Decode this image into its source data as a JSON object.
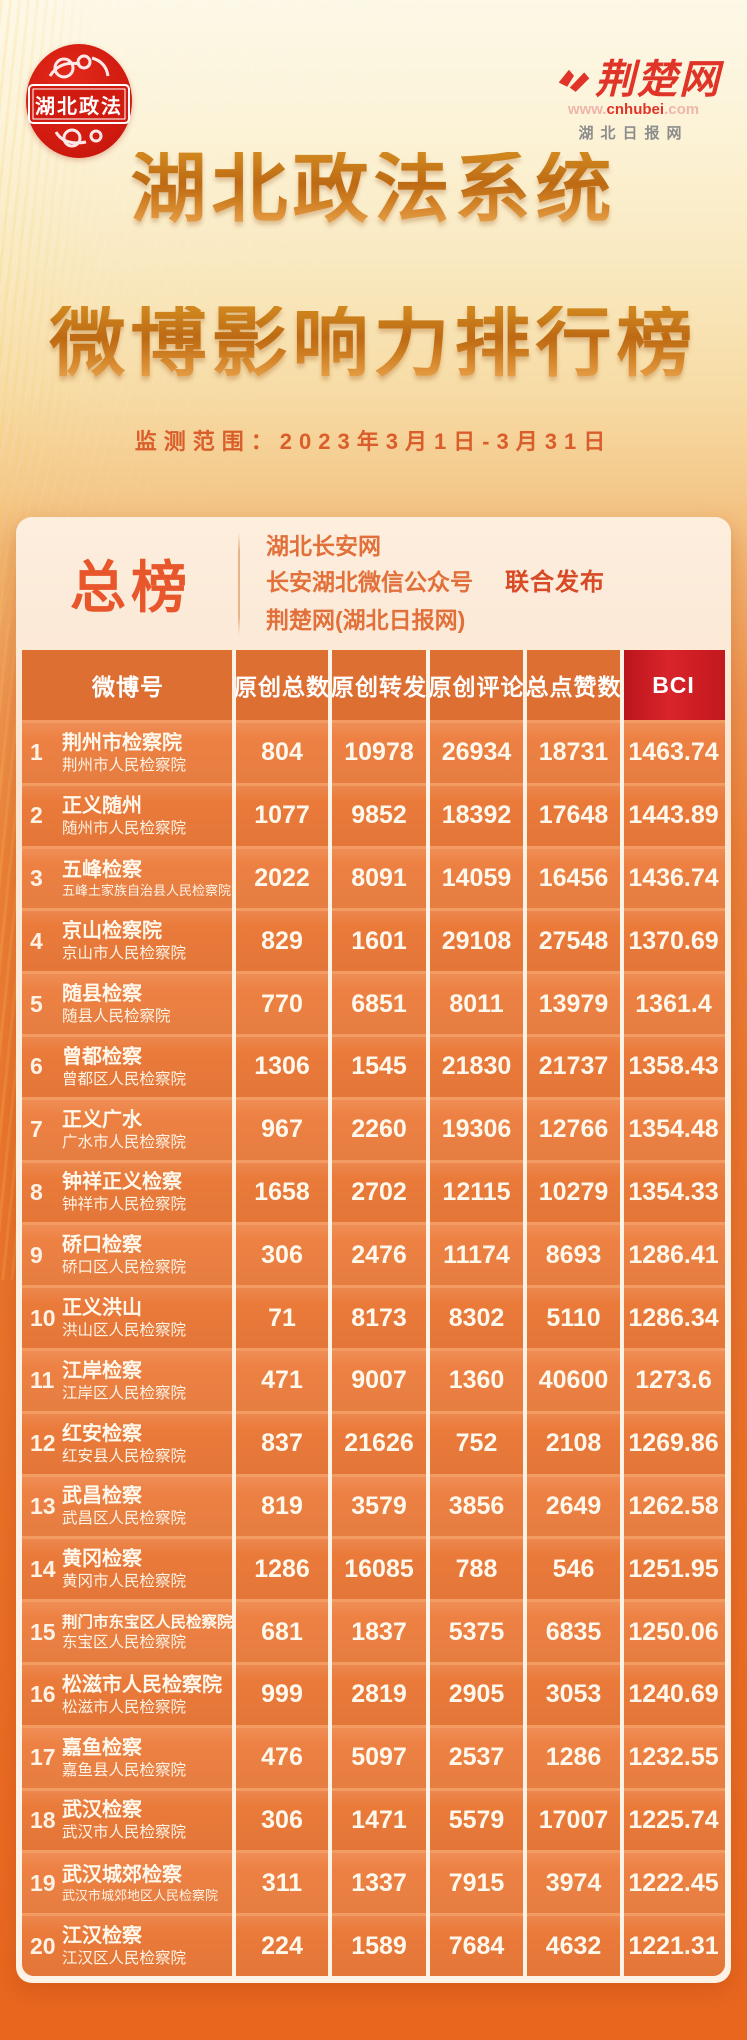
{
  "header": {
    "seal_text": "湖北政法",
    "brand": {
      "name": "荆楚网",
      "url_www": "www.",
      "url_core": "cnhubei",
      "url_com": ".com",
      "site": "湖北日报网"
    },
    "title_line1": "湖北政法系统",
    "title_line2": "微博影响力排行榜",
    "monitor_range": "监测范围：2023年3月1日-3月31日"
  },
  "card": {
    "badge": "总榜",
    "publisher_line1": "湖北长安网",
    "publisher_line2": "长安湖北微信公众号",
    "publisher_line3": "荆楚网(湖北日报网)",
    "joint_release": "联合发布"
  },
  "table": {
    "columns": [
      "微博号",
      "原创总数",
      "原创转发",
      "原创评论",
      "总点赞数",
      "BCI"
    ],
    "rows": [
      {
        "rank": 1,
        "name": "荆州市检察院",
        "account": "荆州市人民检察院",
        "original_total": 804,
        "original_repost": 10978,
        "original_comment": 26934,
        "total_likes": 18731,
        "bci": "1463.74"
      },
      {
        "rank": 2,
        "name": "正义随州",
        "account": "随州市人民检察院",
        "original_total": 1077,
        "original_repost": 9852,
        "original_comment": 18392,
        "total_likes": 17648,
        "bci": "1443.89"
      },
      {
        "rank": 3,
        "name": "五峰检察",
        "account": "五峰土家族自治县人民检察院",
        "original_total": 2022,
        "original_repost": 8091,
        "original_comment": 14059,
        "total_likes": 16456,
        "bci": "1436.74"
      },
      {
        "rank": 4,
        "name": "京山检察院",
        "account": "京山市人民检察院",
        "original_total": 829,
        "original_repost": 1601,
        "original_comment": 29108,
        "total_likes": 27548,
        "bci": "1370.69"
      },
      {
        "rank": 5,
        "name": "随县检察",
        "account": "随县人民检察院",
        "original_total": 770,
        "original_repost": 6851,
        "original_comment": 8011,
        "total_likes": 13979,
        "bci": "1361.4"
      },
      {
        "rank": 6,
        "name": "曾都检察",
        "account": "曾都区人民检察院",
        "original_total": 1306,
        "original_repost": 1545,
        "original_comment": 21830,
        "total_likes": 21737,
        "bci": "1358.43"
      },
      {
        "rank": 7,
        "name": "正义广水",
        "account": "广水市人民检察院",
        "original_total": 967,
        "original_repost": 2260,
        "original_comment": 19306,
        "total_likes": 12766,
        "bci": "1354.48"
      },
      {
        "rank": 8,
        "name": "钟祥正义检察",
        "account": "钟祥市人民检察院",
        "original_total": 1658,
        "original_repost": 2702,
        "original_comment": 12115,
        "total_likes": 10279,
        "bci": "1354.33"
      },
      {
        "rank": 9,
        "name": "硚口检察",
        "account": "硚口区人民检察院",
        "original_total": 306,
        "original_repost": 2476,
        "original_comment": 11174,
        "total_likes": 8693,
        "bci": "1286.41"
      },
      {
        "rank": 10,
        "name": "正义洪山",
        "account": "洪山区人民检察院",
        "original_total": 71,
        "original_repost": 8173,
        "original_comment": 8302,
        "total_likes": 5110,
        "bci": "1286.34"
      },
      {
        "rank": 11,
        "name": "江岸检察",
        "account": "江岸区人民检察院",
        "original_total": 471,
        "original_repost": 9007,
        "original_comment": 1360,
        "total_likes": 40600,
        "bci": "1273.6"
      },
      {
        "rank": 12,
        "name": "红安检察",
        "account": "红安县人民检察院",
        "original_total": 837,
        "original_repost": 21626,
        "original_comment": 752,
        "total_likes": 2108,
        "bci": "1269.86"
      },
      {
        "rank": 13,
        "name": "武昌检察",
        "account": "武昌区人民检察院",
        "original_total": 819,
        "original_repost": 3579,
        "original_comment": 3856,
        "total_likes": 2649,
        "bci": "1262.58"
      },
      {
        "rank": 14,
        "name": "黄冈检察",
        "account": "黄冈市人民检察院",
        "original_total": 1286,
        "original_repost": 16085,
        "original_comment": 788,
        "total_likes": 546,
        "bci": "1251.95"
      },
      {
        "rank": 15,
        "name": "荆门市东宝区人民检察院",
        "account": "东宝区人民检察院",
        "original_total": 681,
        "original_repost": 1837,
        "original_comment": 5375,
        "total_likes": 6835,
        "bci": "1250.06"
      },
      {
        "rank": 16,
        "name": "松滋市人民检察院",
        "account": "松滋市人民检察院",
        "original_total": 999,
        "original_repost": 2819,
        "original_comment": 2905,
        "total_likes": 3053,
        "bci": "1240.69"
      },
      {
        "rank": 17,
        "name": "嘉鱼检察",
        "account": "嘉鱼县人民检察院",
        "original_total": 476,
        "original_repost": 5097,
        "original_comment": 2537,
        "total_likes": 1286,
        "bci": "1232.55"
      },
      {
        "rank": 18,
        "name": "武汉检察",
        "account": "武汉市人民检察院",
        "original_total": 306,
        "original_repost": 1471,
        "original_comment": 5579,
        "total_likes": 17007,
        "bci": "1225.74"
      },
      {
        "rank": 19,
        "name": "武汉城郊检察",
        "account": "武汉市城郊地区人民检察院",
        "original_total": 311,
        "original_repost": 1337,
        "original_comment": 7915,
        "total_likes": 3974,
        "bci": "1222.45"
      },
      {
        "rank": 20,
        "name": "江汉检察",
        "account": "江汉区人民检察院",
        "original_total": 224,
        "original_repost": 1589,
        "original_comment": 7684,
        "total_likes": 4632,
        "bci": "1221.31"
      }
    ]
  },
  "colors": {
    "page_bottom_orange": "#e8661e",
    "table_cell_orange": "#ed8143",
    "header_cell_orange": "#dd6f33",
    "bci_header_red": "#c2181e",
    "seal_red": "#d11b10",
    "brand_red": "#e03428",
    "badge_orange_red": "#e8572c",
    "title_gold": "#c9761f"
  }
}
